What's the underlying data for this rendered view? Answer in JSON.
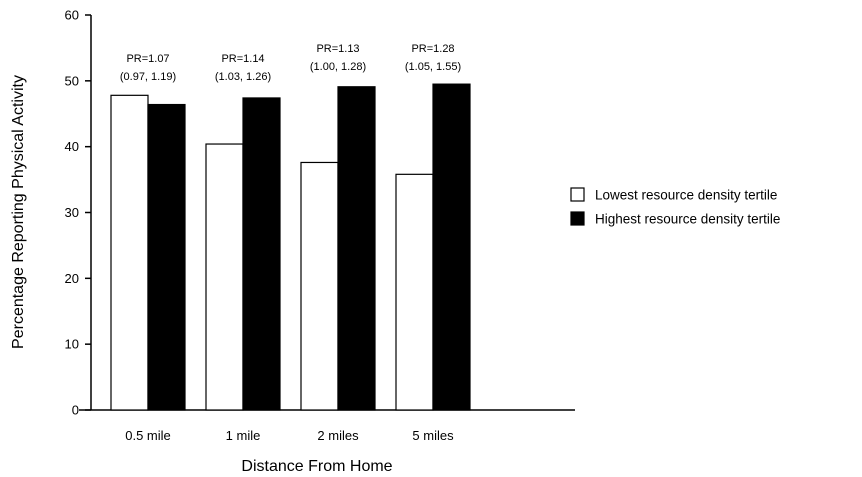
{
  "chart_data": {
    "type": "bar",
    "title": "",
    "xlabel": "Distance From Home",
    "ylabel": "Percentage Reporting Physical Activity",
    "ylim": [
      0,
      60
    ],
    "yticks": [
      "0",
      "10",
      "20",
      "30",
      "40",
      "50",
      "60"
    ],
    "categories": [
      "0.5 mile",
      "1 mile",
      "2 miles",
      "5 miles"
    ],
    "series": [
      {
        "name": "Lowest resource density tertile",
        "values": [
          47.8,
          40.4,
          37.6,
          35.8
        ],
        "color": "#ffffff"
      },
      {
        "name": "Highest resource density tertile",
        "values": [
          46.4,
          47.4,
          49.1,
          49.5
        ],
        "color": "#000000"
      }
    ],
    "annotations": [
      {
        "line1": "PR=1.07",
        "line2": "(0.97, 1.19)"
      },
      {
        "line1": "PR=1.14",
        "line2": "(1.03, 1.26)"
      },
      {
        "line1": "PR=1.13",
        "line2": "(1.00, 1.28)"
      },
      {
        "line1": "PR=1.28",
        "line2": "(1.05, 1.55)"
      }
    ],
    "legend_position": "right",
    "grid": false
  }
}
